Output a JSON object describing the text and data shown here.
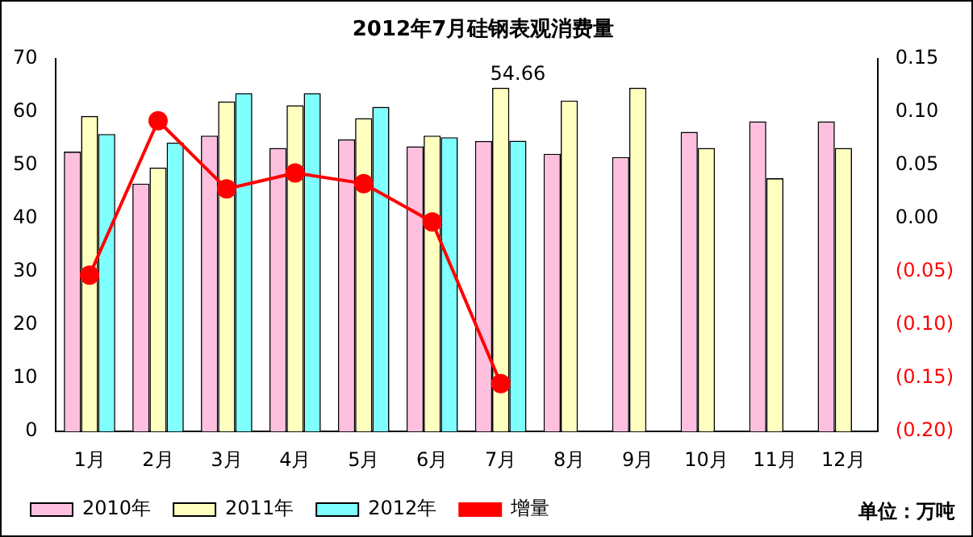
{
  "chart_data": {
    "type": "bar",
    "title": "2012年7月硅钢表观消费量",
    "categories": [
      "1月",
      "2月",
      "3月",
      "4月",
      "5月",
      "6月",
      "7月",
      "8月",
      "9月",
      "10月",
      "11月",
      "12月"
    ],
    "series": [
      {
        "name": "2010年",
        "color": "#ffc0e0",
        "values": [
          52.6,
          46.6,
          55.6,
          53.3,
          54.9,
          53.6,
          54.6,
          52.2,
          51.6,
          56.3,
          58.3,
          58.3
        ]
      },
      {
        "name": "2011年",
        "color": "#ffffc0",
        "values": [
          59.3,
          49.6,
          62.0,
          61.3,
          58.9,
          55.6,
          64.6,
          62.2,
          64.6,
          53.3,
          47.6,
          53.3
        ]
      },
      {
        "name": "2012年",
        "color": "#80ffff",
        "values": [
          55.9,
          54.3,
          63.6,
          63.6,
          61.0,
          55.3,
          54.66,
          null,
          null,
          null,
          null,
          null
        ],
        "value_labels": [
          null,
          null,
          null,
          null,
          null,
          null,
          "54.66",
          null,
          null,
          null,
          null,
          null
        ]
      },
      {
        "name": "增量",
        "type": "line",
        "axis": "y2",
        "color": "#ff0000",
        "values": [
          -0.053,
          0.092,
          0.028,
          0.043,
          0.033,
          -0.003,
          -0.155,
          null,
          null,
          null,
          null,
          null
        ]
      }
    ],
    "ylim": [
      0,
      70
    ],
    "yticks": [
      0,
      10,
      20,
      30,
      40,
      50,
      60,
      70
    ],
    "y2lim": [
      -0.2,
      0.15
    ],
    "y2ticks": [
      {
        "value": 0.15,
        "label": "0.15"
      },
      {
        "value": 0.1,
        "label": "0.10"
      },
      {
        "value": 0.05,
        "label": "0.05"
      },
      {
        "value": 0,
        "label": "0.00"
      },
      {
        "value": -0.05,
        "label": "(0.05)"
      },
      {
        "value": -0.1,
        "label": "(0.10)"
      },
      {
        "value": -0.15,
        "label": "(0.15)"
      },
      {
        "value": -0.2,
        "label": "(0.20)"
      }
    ],
    "grid": false,
    "legend": "bottom",
    "marker": "circle",
    "line_style": "solid",
    "annotations": [
      "单位：万吨"
    ]
  }
}
